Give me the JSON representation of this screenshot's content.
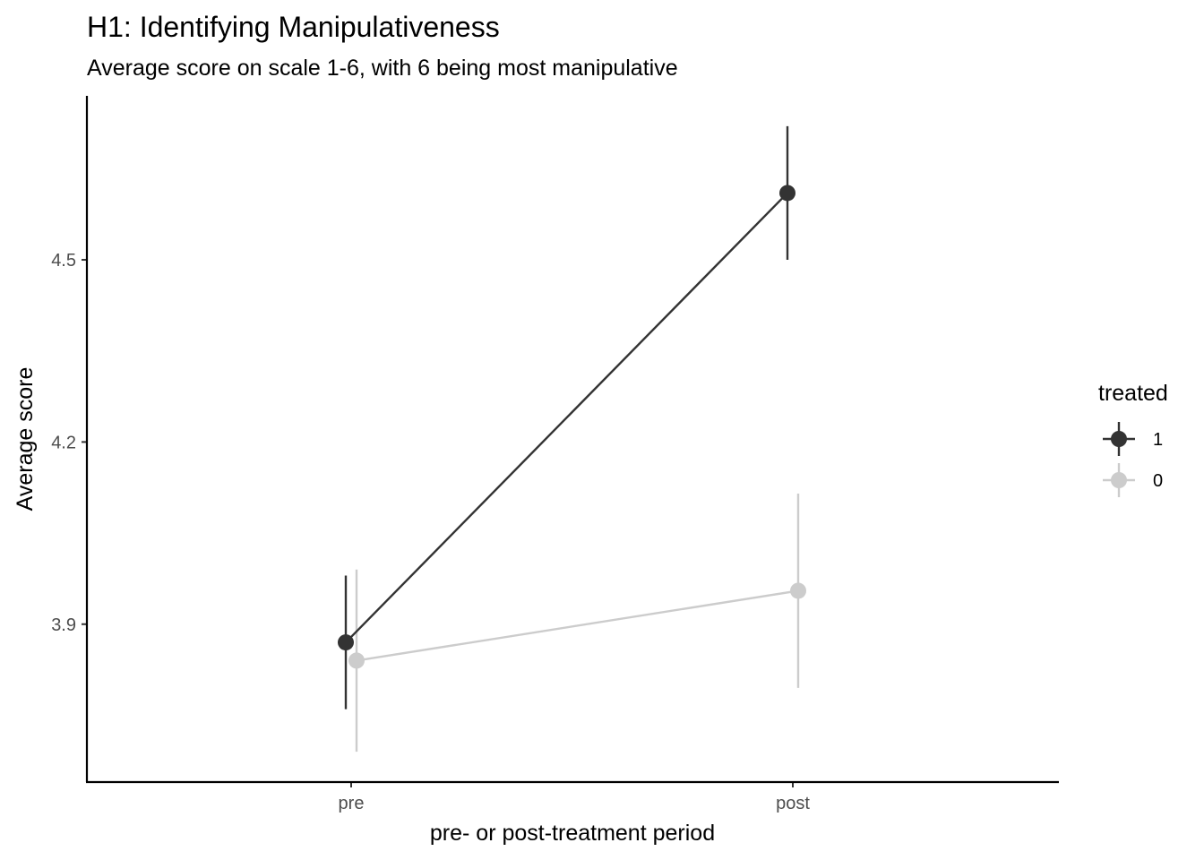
{
  "chart_data": {
    "type": "line",
    "title": "H1: Identifying Manipulativeness",
    "subtitle": "Average score on scale 1-6, with 6 being most manipulative",
    "xlabel": "pre- or post-treatment period",
    "ylabel": "Average score",
    "categories": [
      "pre",
      "post"
    ],
    "yticks": [
      3.9,
      4.2,
      4.5
    ],
    "ytick_labels": [
      "3.9",
      "4.2",
      "4.5"
    ],
    "ylim": [
      3.64,
      4.77
    ],
    "grid": false,
    "legend": {
      "title": "treated",
      "position": "right"
    },
    "series": [
      {
        "name": "1",
        "color": "#333333",
        "values": [
          3.87,
          4.61
        ],
        "lower": [
          3.76,
          4.5
        ],
        "upper": [
          3.98,
          4.72
        ]
      },
      {
        "name": "0",
        "color": "#cccccc",
        "values": [
          3.84,
          3.955
        ],
        "lower": [
          3.69,
          3.795
        ],
        "upper": [
          3.99,
          4.115
        ]
      }
    ]
  }
}
